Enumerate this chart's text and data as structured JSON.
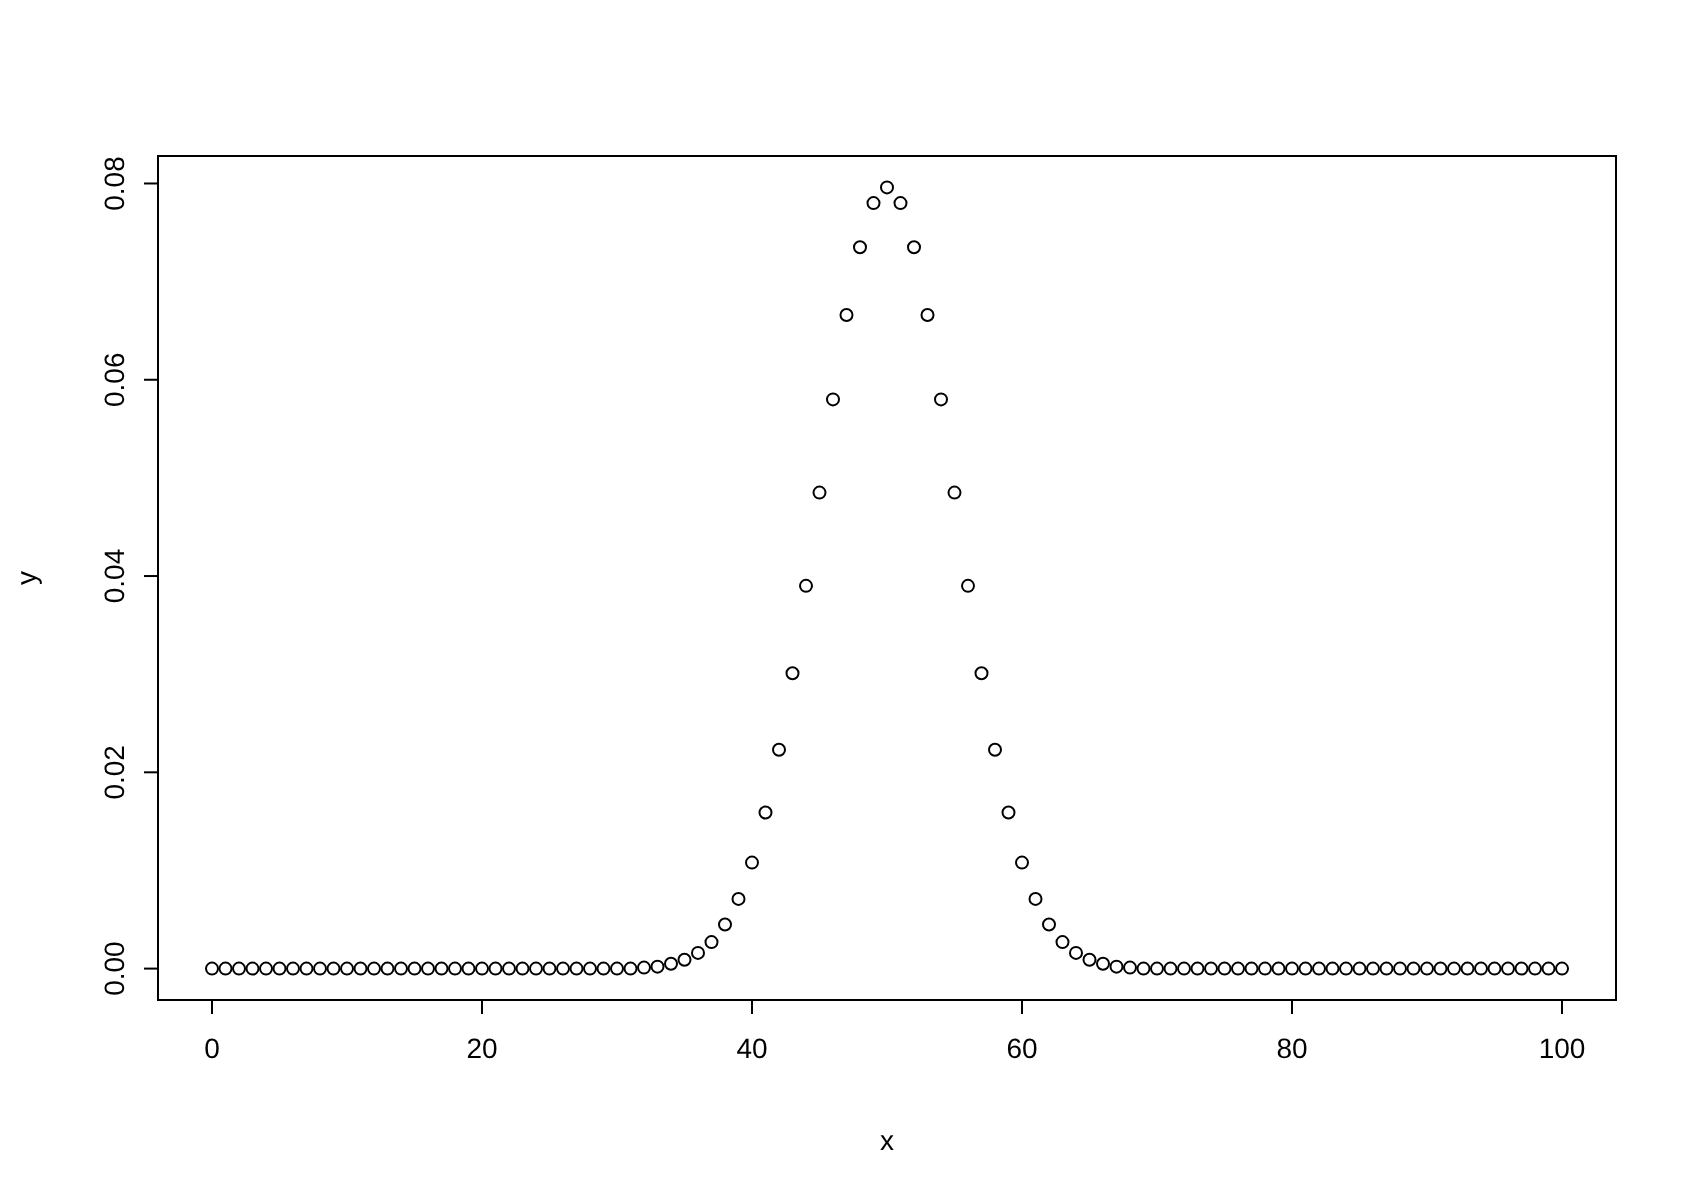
{
  "chart_data": {
    "type": "scatter",
    "xlabel": "x",
    "ylabel": "y",
    "marker": "circle",
    "grid": false,
    "x": [
      0,
      1,
      2,
      3,
      4,
      5,
      6,
      7,
      8,
      9,
      10,
      11,
      12,
      13,
      14,
      15,
      16,
      17,
      18,
      19,
      20,
      21,
      22,
      23,
      24,
      25,
      26,
      27,
      28,
      29,
      30,
      31,
      32,
      33,
      34,
      35,
      36,
      37,
      38,
      39,
      40,
      41,
      42,
      43,
      44,
      45,
      46,
      47,
      48,
      49,
      50,
      51,
      52,
      53,
      54,
      55,
      56,
      57,
      58,
      59,
      60,
      61,
      62,
      63,
      64,
      65,
      66,
      67,
      68,
      69,
      70,
      71,
      72,
      73,
      74,
      75,
      76,
      77,
      78,
      79,
      80,
      81,
      82,
      83,
      84,
      85,
      86,
      87,
      88,
      89,
      90,
      91,
      92,
      93,
      94,
      95,
      96,
      97,
      98,
      99,
      100
    ],
    "series": [
      {
        "color": "#000000",
        "values": [
          0,
          0,
          0,
          0,
          0,
          0,
          0,
          0,
          0,
          0,
          0,
          0,
          0,
          0,
          0,
          0,
          0,
          0,
          0,
          0,
          0,
          0,
          0,
          0,
          0,
          0,
          0,
          0,
          0,
          0,
          0,
          0,
          0.0001,
          0.0002,
          0.0005,
          0.0009,
          0.0016,
          0.0027,
          0.0045,
          0.0071,
          0.0108,
          0.0159,
          0.0223,
          0.0301,
          0.039,
          0.0485,
          0.058,
          0.0666,
          0.0735,
          0.078,
          0.0796,
          0.078,
          0.0735,
          0.0666,
          0.058,
          0.0485,
          0.039,
          0.0301,
          0.0223,
          0.0159,
          0.0108,
          0.0071,
          0.0045,
          0.0027,
          0.0016,
          0.0009,
          0.0005,
          0.0002,
          0.0001,
          0,
          0,
          0,
          0,
          0,
          0,
          0,
          0,
          0,
          0,
          0,
          0,
          0,
          0,
          0,
          0,
          0,
          0,
          0,
          0,
          0,
          0,
          0,
          0,
          0,
          0,
          0,
          0,
          0,
          0,
          0,
          0
        ]
      }
    ],
    "xlim": [
      -4,
      104
    ],
    "ylim": [
      -0.0032,
      0.0828
    ],
    "xticks": [
      0,
      20,
      40,
      60,
      80,
      100
    ],
    "yticks": [
      {
        "value": 0,
        "label": "0.00"
      },
      {
        "value": 0.02,
        "label": "0.02"
      },
      {
        "value": 0.04,
        "label": "0.04"
      },
      {
        "value": 0.06,
        "label": "0.06"
      },
      {
        "value": 0.08,
        "label": "0.08"
      }
    ]
  }
}
